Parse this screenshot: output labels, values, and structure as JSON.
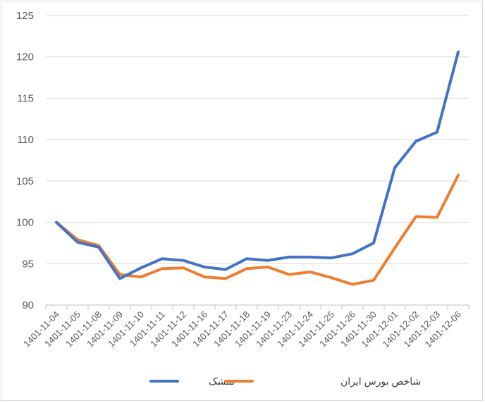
{
  "chart_data": {
    "type": "line",
    "title": "",
    "xlabel": "",
    "ylabel": "",
    "ylim": [
      90,
      125
    ],
    "yticks": [
      90,
      95,
      100,
      105,
      110,
      115,
      120,
      125
    ],
    "grid": true,
    "legend_position": "bottom",
    "categories": [
      "1401-11-04",
      "1401-11-05",
      "1401-11-08",
      "1401-11-09",
      "1401-11-10",
      "1401-11-11",
      "1401-11-12",
      "1401-11-16",
      "1401-11-17",
      "1401-11-18",
      "1401-11-19",
      "1401-11-23",
      "1401-11-24",
      "1401-11-25",
      "1401-11-26",
      "1401-11-30",
      "1401-12-01",
      "1401-12-02",
      "1401-12-03",
      "1401-12-06"
    ],
    "series": [
      {
        "name": "تمشک",
        "color": "#4472C4",
        "values": [
          100,
          97.6,
          97.0,
          93.2,
          94.5,
          95.6,
          95.4,
          94.6,
          94.3,
          95.6,
          95.4,
          95.8,
          95.8,
          95.7,
          96.2,
          97.5,
          106.6,
          109.8,
          110.9,
          120.6
        ]
      },
      {
        "name": "شاخص بورس ایران",
        "color": "#ED7D31",
        "values": [
          100,
          97.9,
          97.2,
          93.7,
          93.4,
          94.4,
          94.5,
          93.4,
          93.2,
          94.4,
          94.6,
          93.7,
          94.0,
          93.3,
          92.5,
          93.0,
          96.9,
          100.7,
          100.6,
          105.7
        ]
      }
    ]
  },
  "style": {
    "grid_color": "#d9d9d9",
    "axis_color": "#bfbfbf",
    "text_color": "#595959"
  }
}
